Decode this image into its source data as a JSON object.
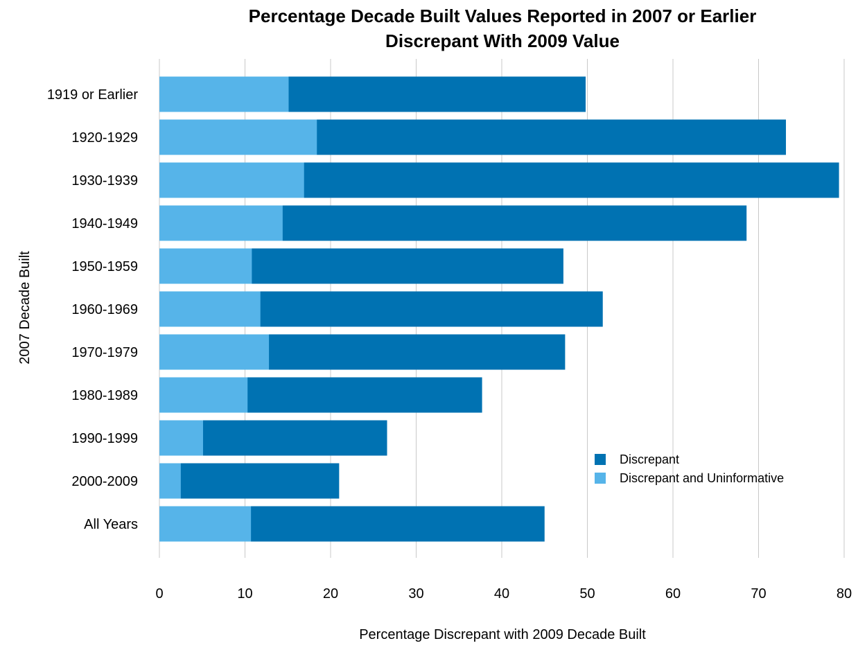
{
  "chart_data": {
    "type": "bar",
    "orientation": "horizontal",
    "stacked": true,
    "title_lines": [
      "Percentage Decade Built Values Reported in 2007 or Earlier",
      "Discrepant With 2009 Value"
    ],
    "xlabel": "Percentage Discrepant with 2009 Decade Built",
    "ylabel": "2007 Decade Built",
    "xlim": [
      0,
      80
    ],
    "xticks": [
      0,
      10,
      20,
      30,
      40,
      50,
      60,
      70,
      80
    ],
    "grid": "vertical",
    "legend_position": "right",
    "categories": [
      "1919 or Earlier",
      "1920-1929",
      "1930-1939",
      "1940-1949",
      "1950-1959",
      "1960-1969",
      "1970-1979",
      "1980-1989",
      "1990-1999",
      "2000-2009",
      "All Years"
    ],
    "series": [
      {
        "name": "Discrepant and Uninformative",
        "color": "#56b4e9",
        "values": [
          15.1,
          18.4,
          16.9,
          14.4,
          10.8,
          11.8,
          12.8,
          10.3,
          5.1,
          2.5,
          10.7
        ]
      },
      {
        "name": "Discrepant",
        "color": "#0072b2",
        "totals": [
          49.8,
          73.2,
          79.4,
          68.6,
          47.2,
          51.8,
          47.4,
          37.7,
          26.6,
          21.0,
          45.0
        ]
      }
    ],
    "legend_order": [
      "Discrepant",
      "Discrepant and Uninformative"
    ]
  }
}
